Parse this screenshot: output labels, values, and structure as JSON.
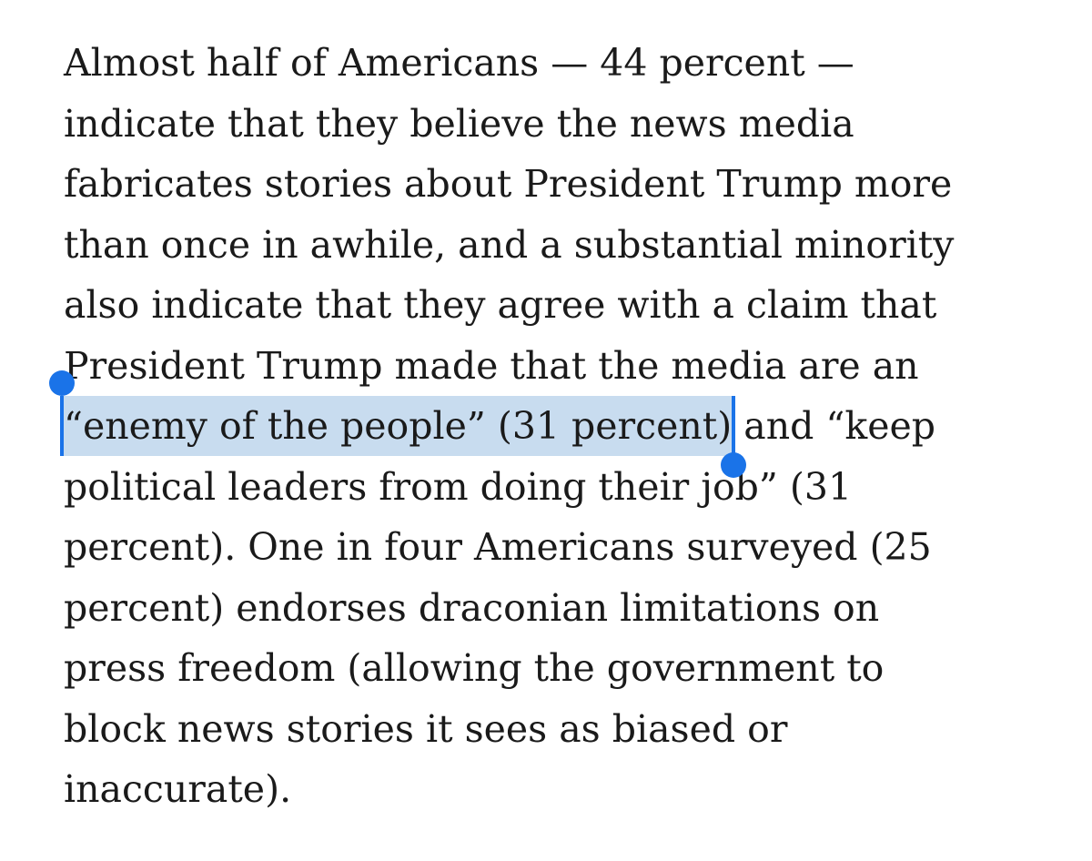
{
  "article": {
    "lines": [
      "Almost half of Americans — 44 percent —",
      "indicate that they believe the news media",
      "fabricates stories about President Trump more",
      "than once in awhile, and a substantial minority",
      "also indicate that they agree with a claim that",
      "President Trump made that the media are an"
    ],
    "selected_text": "“enemy of the people” (31 percent)",
    "after_selection": " and “keep",
    "lines_after": [
      "political leaders from doing their job” (31",
      "percent). One in four Americans surveyed (25",
      "percent) endorses draconian limitations on",
      "press freedom (allowing the government to",
      "block news stories it sees as biased or",
      "inaccurate)."
    ]
  },
  "colors": {
    "text": "#1a1a1a",
    "selection_highlight": "#c8dcef",
    "selection_handle": "#1a73e8"
  }
}
